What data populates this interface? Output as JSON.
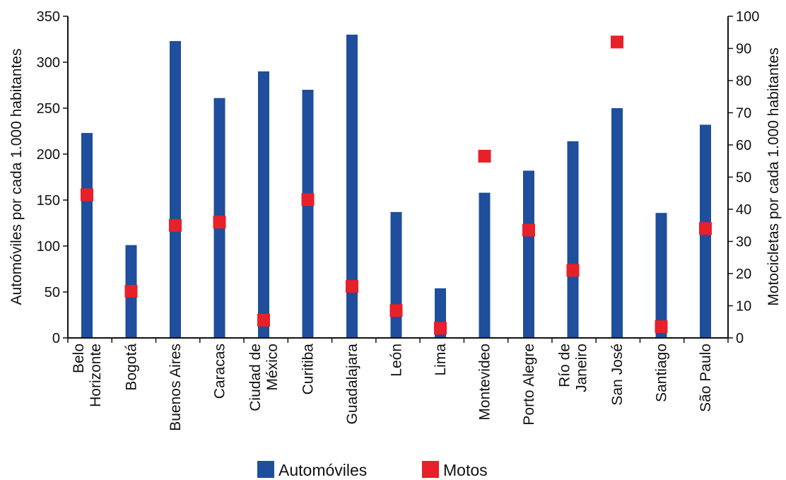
{
  "chart_data": {
    "type": "bar",
    "categories": [
      [
        "Belo",
        "Horizonte"
      ],
      [
        "Bogotá"
      ],
      [
        "Buenos Aires"
      ],
      [
        "Caracas"
      ],
      [
        "Ciudad de",
        "México"
      ],
      [
        "Curitiba"
      ],
      [
        "Guadalajara"
      ],
      [
        "León"
      ],
      [
        "Lima"
      ],
      [
        "Montevideo"
      ],
      [
        "Porto Alegre"
      ],
      [
        "Río de",
        "Janeiro"
      ],
      [
        "San José"
      ],
      [
        "Santiago"
      ],
      [
        "São Paulo"
      ]
    ],
    "series": [
      {
        "name": "Automóviles",
        "axis": "left",
        "render": "bar",
        "color": "#1f4e9c",
        "values": [
          223,
          101,
          323,
          261,
          290,
          270,
          330,
          137,
          54,
          158,
          182,
          214,
          250,
          136,
          232
        ]
      },
      {
        "name": "Motos",
        "axis": "right",
        "render": "marker",
        "color": "#e8202a",
        "values": [
          44.5,
          14.5,
          35,
          36,
          5.5,
          43,
          16,
          8.5,
          3,
          56.5,
          33.5,
          21,
          92,
          3.5,
          34
        ]
      }
    ],
    "ylabel": "Automóviles por cada 1.000 habitantes",
    "y2label": "Motocicletas por cada 1.000 habitantes",
    "ylim": [
      0,
      350
    ],
    "y2lim": [
      0,
      100
    ],
    "yticks": [
      0,
      50,
      100,
      150,
      200,
      250,
      300,
      350
    ],
    "y2ticks": [
      0,
      10,
      20,
      30,
      40,
      50,
      60,
      70,
      80,
      90,
      100
    ],
    "grid": false,
    "legend_position": "bottom-center"
  }
}
